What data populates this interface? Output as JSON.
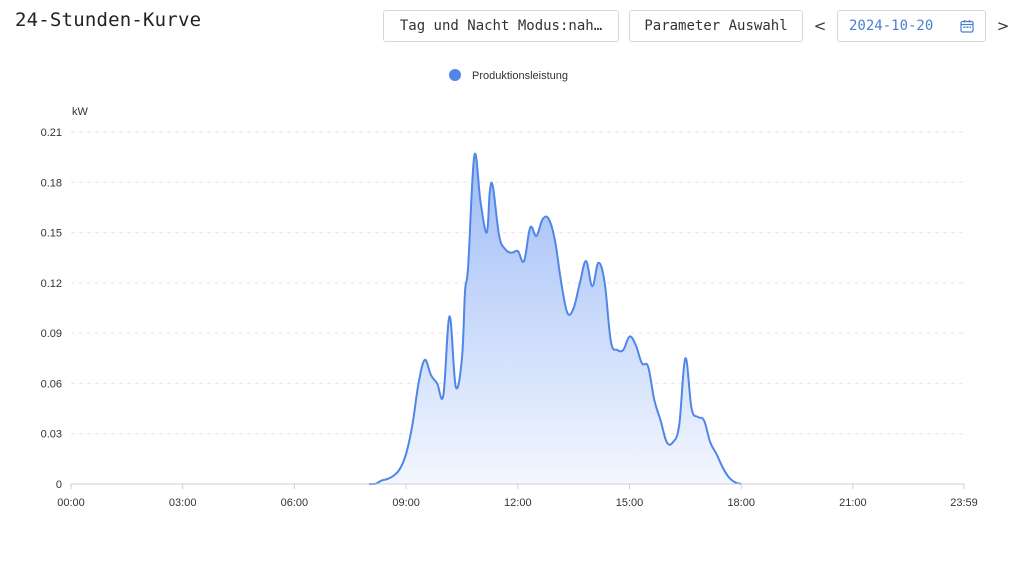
{
  "header": {
    "title": "24-Stunden-Kurve",
    "mode_button_label": "Tag und Nacht Modus:nah…",
    "parameter_button_label": "Parameter Auswahl",
    "prev_label": "<",
    "next_label": ">",
    "date_value": "2024-10-20"
  },
  "colors": {
    "series": "#4f86e8",
    "fill_top": "#9fbcf7",
    "fill_bottom": "#f3f7fe",
    "grid": "#e6e6e6",
    "icons": "calendar-icon"
  },
  "chart_data": {
    "type": "area",
    "legend": [
      "Produktionsleistung"
    ],
    "legend_position": "top-center",
    "ylabel": "kW",
    "xlabel": "",
    "ylim": [
      0,
      0.21
    ],
    "y_ticks": [
      "0",
      "0.03",
      "0.06",
      "0.09",
      "0.12",
      "0.15",
      "0.18",
      "0.21"
    ],
    "x_ticks": [
      "00:00",
      "03:00",
      "06:00",
      "09:00",
      "12:00",
      "15:00",
      "18:00",
      "21:00",
      "23:59"
    ],
    "grid": "horizontal dashed",
    "series": [
      {
        "name": "Produktionsleistung",
        "x": [
          "08:00",
          "08:10",
          "08:20",
          "08:30",
          "08:40",
          "08:50",
          "09:00",
          "09:10",
          "09:20",
          "09:30",
          "09:40",
          "09:50",
          "10:00",
          "10:10",
          "10:20",
          "10:30",
          "10:35",
          "10:40",
          "10:50",
          "11:00",
          "11:10",
          "11:15",
          "11:20",
          "11:30",
          "11:40",
          "11:50",
          "12:00",
          "12:10",
          "12:20",
          "12:30",
          "12:40",
          "12:50",
          "13:00",
          "13:10",
          "13:20",
          "13:30",
          "13:40",
          "13:50",
          "14:00",
          "14:10",
          "14:20",
          "14:30",
          "14:40",
          "14:50",
          "15:00",
          "15:10",
          "15:20",
          "15:30",
          "15:40",
          "15:50",
          "16:00",
          "16:10",
          "16:20",
          "16:30",
          "16:40",
          "16:50",
          "17:00",
          "17:10",
          "17:20",
          "17:30",
          "17:40",
          "17:50",
          "18:00"
        ],
        "values": [
          0,
          0,
          0.002,
          0.003,
          0.005,
          0.009,
          0.018,
          0.035,
          0.06,
          0.074,
          0.065,
          0.06,
          0.053,
          0.1,
          0.058,
          0.075,
          0.115,
          0.13,
          0.196,
          0.168,
          0.15,
          0.175,
          0.177,
          0.148,
          0.14,
          0.138,
          0.139,
          0.133,
          0.153,
          0.148,
          0.158,
          0.158,
          0.145,
          0.12,
          0.102,
          0.105,
          0.12,
          0.133,
          0.118,
          0.132,
          0.12,
          0.085,
          0.08,
          0.08,
          0.088,
          0.083,
          0.072,
          0.07,
          0.05,
          0.038,
          0.025,
          0.025,
          0.035,
          0.075,
          0.045,
          0.04,
          0.038,
          0.025,
          0.018,
          0.01,
          0.004,
          0.001,
          0
        ]
      }
    ]
  }
}
